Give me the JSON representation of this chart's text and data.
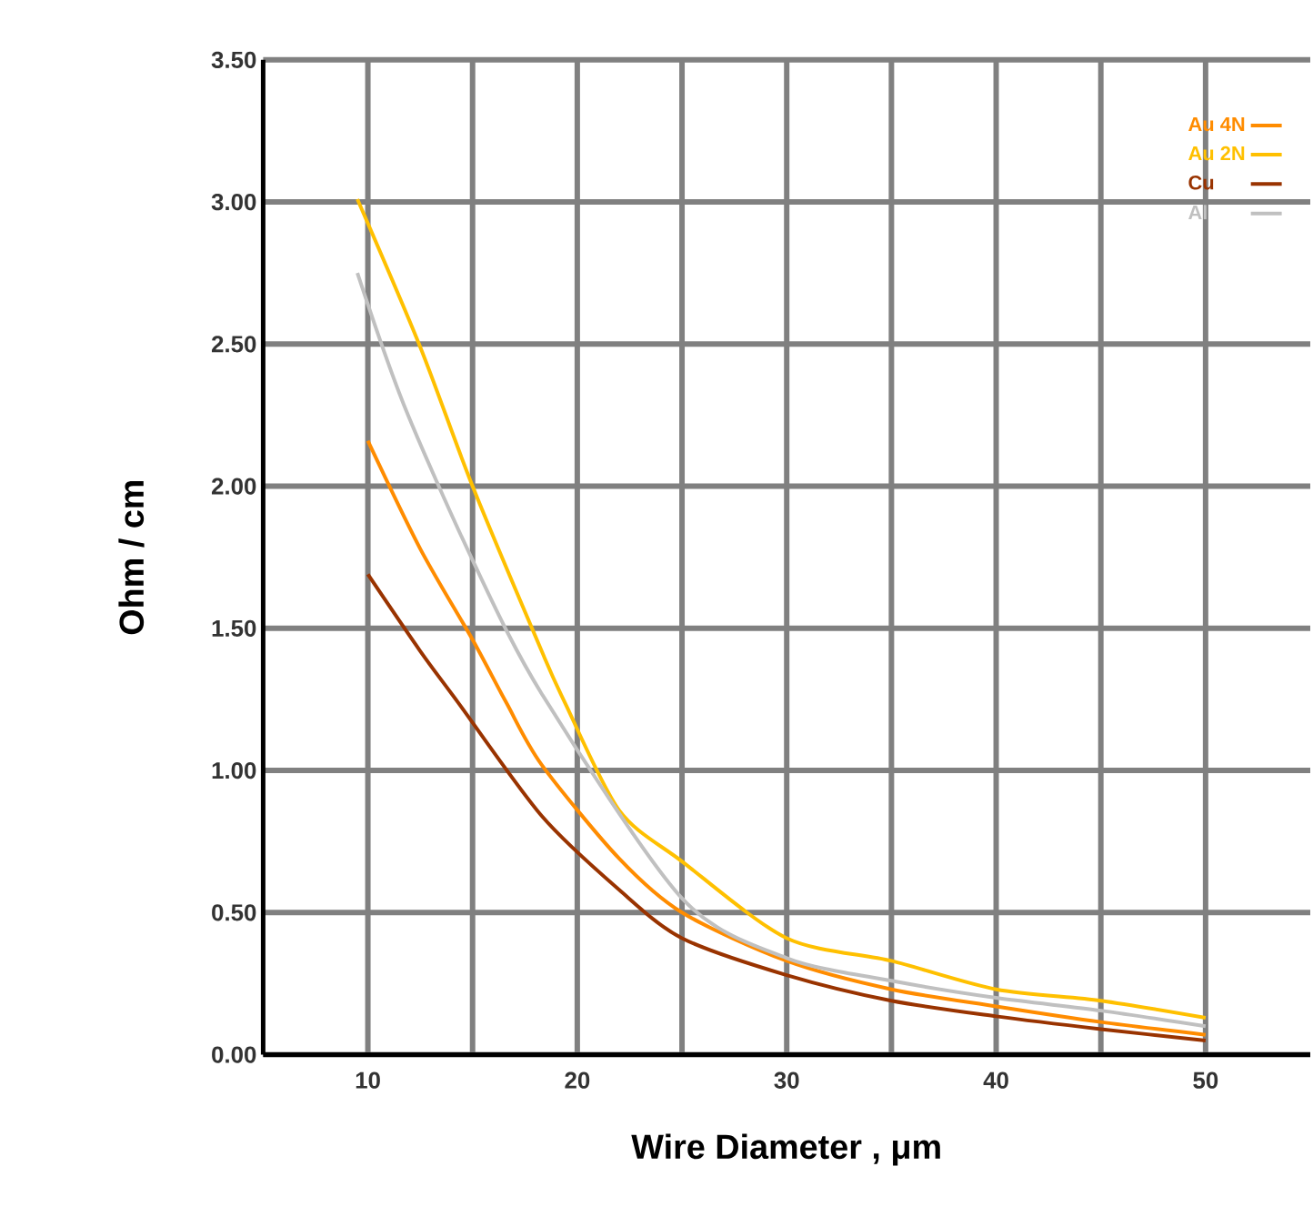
{
  "chart_data": {
    "type": "line",
    "xlabel": "Wire Diameter , μm",
    "ylabel": "Ohm  /  cm",
    "xlim": [
      5,
      55
    ],
    "ylim": [
      0,
      3.5
    ],
    "xticks": [
      10,
      {
        "value": 15,
        "label": null
      },
      20,
      {
        "value": 25,
        "label": null
      },
      30,
      {
        "value": 35,
        "label": null
      },
      40,
      {
        "value": 45,
        "label": null
      },
      50
    ],
    "yticks": [
      {
        "value": 0,
        "label": "0.00"
      },
      {
        "value": 0.5,
        "label": "0.50"
      },
      {
        "value": 1,
        "label": "1.00"
      },
      {
        "value": 1.5,
        "label": "1.50"
      },
      {
        "value": 2,
        "label": "2.00"
      },
      {
        "value": 2.5,
        "label": "2.50"
      },
      {
        "value": 3,
        "label": "3.00"
      },
      {
        "value": 3.5,
        "label": "3.50"
      }
    ],
    "grid": true,
    "legend": "top right",
    "marker": "none",
    "series": [
      {
        "name": "Au 4N",
        "color": "#ff8c00",
        "x": [
          10,
          12.5,
          15,
          16.6,
          18.3,
          22,
          25,
          30,
          35,
          40,
          45,
          50
        ],
        "values": [
          2.16,
          1.78,
          1.46,
          1.24,
          1.02,
          0.69,
          0.5,
          0.33,
          0.23,
          0.17,
          0.115,
          0.07
        ]
      },
      {
        "name": "Au 2N",
        "color": "#ffc000",
        "x": [
          9.5,
          12.5,
          15,
          18.3,
          19.4,
          22,
          25,
          30,
          35,
          40,
          45,
          50
        ],
        "values": [
          3.01,
          2.49,
          2.0,
          1.42,
          1.24,
          0.86,
          0.68,
          0.41,
          0.33,
          0.23,
          0.19,
          0.13
        ]
      },
      {
        "name": "Cu",
        "color": "#993300",
        "x": [
          10,
          12.5,
          14.3,
          18.3,
          22,
          25,
          30,
          35,
          40,
          45,
          50
        ],
        "values": [
          1.69,
          1.42,
          1.24,
          0.84,
          0.58,
          0.41,
          0.28,
          0.19,
          0.135,
          0.09,
          0.05
        ]
      },
      {
        "name": "Al",
        "color": "#c0c0c0",
        "x": [
          9.5,
          11.7,
          15,
          18.3,
          25,
          30,
          35,
          40,
          45,
          50
        ],
        "values": [
          2.75,
          2.29,
          1.74,
          1.27,
          0.55,
          0.34,
          0.26,
          0.2,
          0.155,
          0.1
        ]
      }
    ]
  }
}
